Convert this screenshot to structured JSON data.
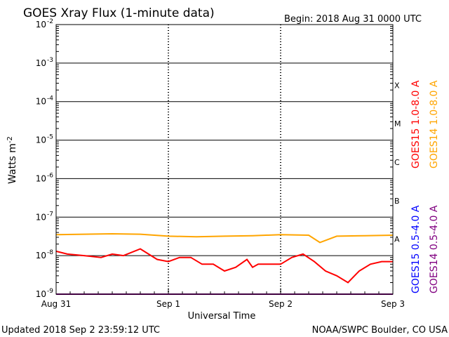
{
  "header": {
    "title": "GOES Xray Flux (1-minute data)",
    "begin": "Begin:  2018 Aug 31 0000 UTC"
  },
  "footer": {
    "updated": "Updated 2018 Sep  2 23:59:12 UTC",
    "credit": "NOAA/SWPC Boulder, CO USA"
  },
  "colors": {
    "goes15_long": "#ff0000",
    "goes14_long": "#ffa500",
    "goes15_short": "#0000ff",
    "goes14_short": "#800080",
    "grid": "#000000"
  },
  "chart_data": {
    "type": "line",
    "title": "GOES Xray Flux (1-minute data)",
    "xlabel": "Universal Time",
    "ylabel": "Watts m",
    "ylabel_superscript": "-2",
    "y_scale": "log",
    "ylim": [
      1e-09,
      0.01
    ],
    "x_ticks": [
      "Aug 31",
      "Sep 1",
      "Sep 2",
      "Sep 3"
    ],
    "y_ticks": [
      {
        "base": "10",
        "exp": "-9"
      },
      {
        "base": "10",
        "exp": "-8"
      },
      {
        "base": "10",
        "exp": "-7"
      },
      {
        "base": "10",
        "exp": "-6"
      },
      {
        "base": "10",
        "exp": "-5"
      },
      {
        "base": "10",
        "exp": "-4"
      },
      {
        "base": "10",
        "exp": "-3"
      },
      {
        "base": "10",
        "exp": "-2"
      }
    ],
    "flare_classes": [
      "A",
      "B",
      "C",
      "M",
      "X"
    ],
    "grid": true,
    "legend_right_top": [
      {
        "label": "GOES15 1.0-8.0 A",
        "color": "#ff0000"
      },
      {
        "label": "GOES14 1.0-8.0 A",
        "color": "#ffa500"
      }
    ],
    "legend_right_bottom": [
      {
        "label": "GOES15 0.5-4.0 A",
        "color": "#0000ff"
      },
      {
        "label": "GOES14 0.5-4.0 A",
        "color": "#800080"
      }
    ],
    "series": [
      {
        "name": "GOES15 1.0-8.0 A",
        "color": "#ff0000",
        "x": [
          0,
          0.1,
          0.25,
          0.4,
          0.5,
          0.6,
          0.75,
          0.9,
          1.0,
          1.1,
          1.2,
          1.3,
          1.4,
          1.5,
          1.6,
          1.7,
          1.75,
          1.8,
          1.9,
          2.0,
          2.1,
          2.2,
          2.3,
          2.4,
          2.5,
          2.6,
          2.7,
          2.8,
          2.9,
          3.0
        ],
        "values": [
          1.3e-08,
          1.1e-08,
          1e-08,
          9e-09,
          1.1e-08,
          1e-08,
          1.5e-08,
          8e-09,
          7e-09,
          9e-09,
          9e-09,
          6e-09,
          6e-09,
          4e-09,
          5e-09,
          8e-09,
          5e-09,
          6e-09,
          6e-09,
          6e-09,
          9e-09,
          1.1e-08,
          7e-09,
          4e-09,
          3e-09,
          2e-09,
          4e-09,
          6e-09,
          7e-09,
          7e-09
        ]
      },
      {
        "name": "GOES14 1.0-8.0 A",
        "color": "#ffa500",
        "x": [
          0,
          0.25,
          0.5,
          0.75,
          1.0,
          1.25,
          1.5,
          1.75,
          2.0,
          2.25,
          2.35,
          2.5,
          2.75,
          3.0
        ],
        "values": [
          3.5e-08,
          3.6e-08,
          3.7e-08,
          3.6e-08,
          3.2e-08,
          3.1e-08,
          3.2e-08,
          3.3e-08,
          3.5e-08,
          3.4e-08,
          2.2e-08,
          3.2e-08,
          3.3e-08,
          3.4e-08
        ]
      },
      {
        "name": "GOES15 0.5-4.0 A",
        "color": "#0000ff",
        "x": [
          0,
          0.5,
          1.0,
          1.5,
          2.0,
          2.5,
          3.0
        ],
        "values": [
          1e-09,
          1e-09,
          1e-09,
          1e-09,
          1e-09,
          1e-09,
          1e-09
        ]
      },
      {
        "name": "GOES14 0.5-4.0 A",
        "color": "#800080",
        "x": [
          0,
          0.5,
          1.0,
          1.5,
          2.0,
          2.5,
          3.0
        ],
        "values": [
          1e-09,
          1e-09,
          1e-09,
          1e-09,
          1e-09,
          1e-09,
          1e-09
        ]
      }
    ]
  }
}
